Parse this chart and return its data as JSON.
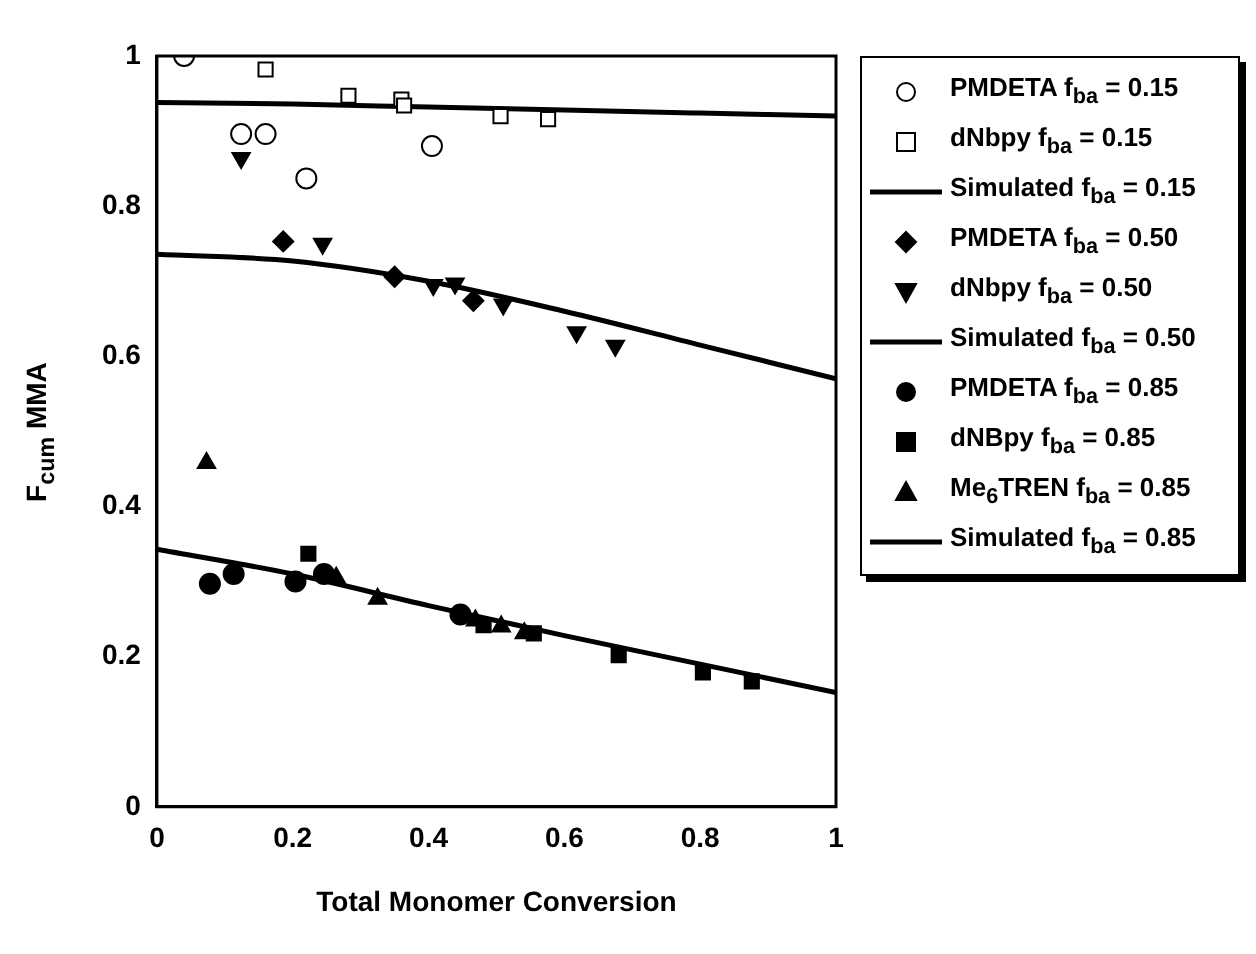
{
  "chart_data": {
    "type": "scatter",
    "xlabel": "Total Monomer Conversion",
    "ylabel": "F$_{cum}$ MMA",
    "xlim": [
      0,
      1
    ],
    "ylim": [
      0,
      1
    ],
    "xticks": [
      0,
      0.2,
      0.4,
      0.6,
      0.8,
      1
    ],
    "yticks": [
      0,
      0.2,
      0.4,
      0.6,
      0.8,
      1
    ],
    "grid": false,
    "legend": "right",
    "series": [
      {
        "name": "PMDETA f$_{ba}$ = 0.15",
        "color": "#000000",
        "marker": "circle-open",
        "x": [
          0.04,
          0.124,
          0.16,
          0.22,
          0.405
        ],
        "values": [
          1.0,
          0.896,
          0.896,
          0.837,
          0.88
        ]
      },
      {
        "name": "dNbpy f$_{ba}$ = 0.15",
        "color": "#000000",
        "marker": "square-open",
        "x": [
          0.16,
          0.282,
          0.36,
          0.364,
          0.506,
          0.576
        ],
        "values": [
          0.982,
          0.947,
          0.942,
          0.934,
          0.92,
          0.916
        ]
      },
      {
        "name": "Simulated f$_{ba}$ = 0.15",
        "type": "line",
        "color": "#000000",
        "marker": "none",
        "line_style": "solid",
        "x": [
          0,
          0.2,
          0.4,
          0.6,
          0.8,
          1
        ],
        "values": [
          0.938,
          0.936,
          0.932,
          0.928,
          0.924,
          0.92
        ]
      },
      {
        "name": "PMDETA f$_{ba}$ = 0.50",
        "color": "#000000",
        "marker": "diamond",
        "x": [
          0.186,
          0.35,
          0.466
        ],
        "values": [
          0.753,
          0.706,
          0.674
        ]
      },
      {
        "name": "dNbpy f$_{ba}$ = 0.50",
        "color": "#000000",
        "marker": "triangle-down",
        "x": [
          0.124,
          0.244,
          0.407,
          0.439,
          0.51,
          0.618,
          0.675
        ],
        "values": [
          0.864,
          0.75,
          0.695,
          0.697,
          0.669,
          0.632,
          0.614
        ]
      },
      {
        "name": "Simulated f$_{ba}$ = 0.50",
        "type": "line",
        "color": "#000000",
        "marker": "none",
        "line_style": "solid",
        "x": [
          0,
          0.2,
          0.4,
          0.6,
          0.8,
          1
        ],
        "values": [
          0.736,
          0.727,
          0.7,
          0.66,
          0.615,
          0.57
        ]
      },
      {
        "name": "PMDETA f$_{ba}$ = 0.85",
        "color": "#000000",
        "marker": "circle",
        "x": [
          0.078,
          0.113,
          0.204,
          0.246,
          0.447
        ],
        "values": [
          0.297,
          0.31,
          0.3,
          0.31,
          0.256
        ]
      },
      {
        "name": "dNBpy f$_{ba}$ = 0.85",
        "color": "#000000",
        "marker": "square",
        "x": [
          0.223,
          0.481,
          0.555,
          0.68,
          0.804,
          0.876
        ],
        "values": [
          0.337,
          0.242,
          0.231,
          0.202,
          0.179,
          0.167
        ]
      },
      {
        "name": "Me$_{6}$TREN f$_{ba}$ = 0.85",
        "color": "#000000",
        "marker": "triangle",
        "x": [
          0.073,
          0.264,
          0.325,
          0.469,
          0.507,
          0.541
        ],
        "values": [
          0.458,
          0.305,
          0.277,
          0.248,
          0.24,
          0.231
        ]
      },
      {
        "name": "Simulated f$_{ba}$ = 0.85",
        "type": "line",
        "color": "#000000",
        "marker": "none",
        "line_style": "solid",
        "x": [
          0,
          0.2,
          0.4,
          0.6,
          0.8,
          1
        ],
        "values": [
          0.343,
          0.31,
          0.268,
          0.228,
          0.19,
          0.152
        ]
      }
    ]
  }
}
